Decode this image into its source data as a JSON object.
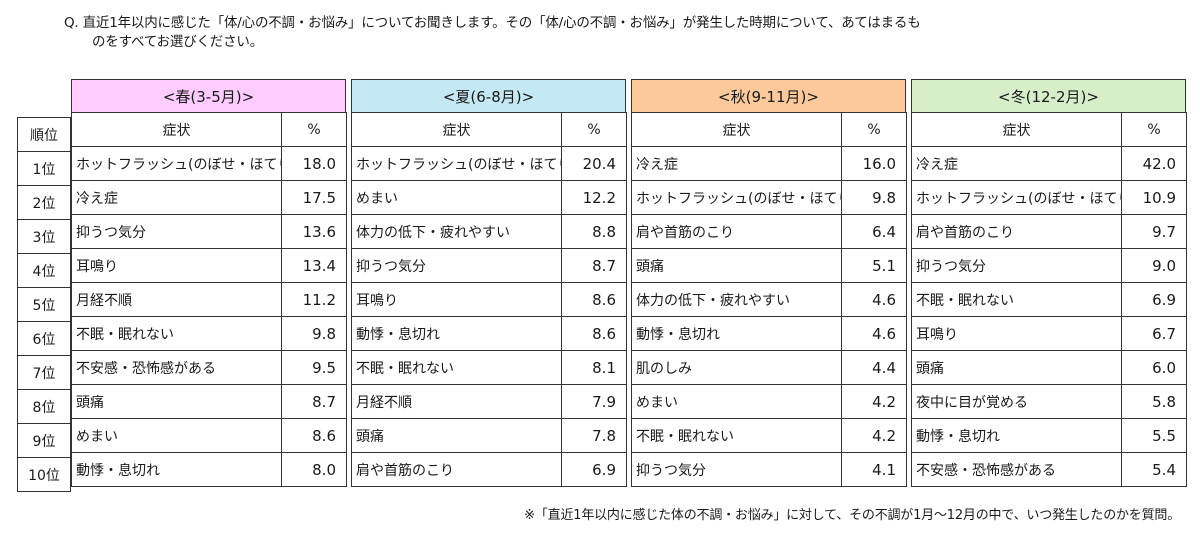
{
  "question": {
    "line1": "Q. 直近1年以内に感じた「体/心の不調・お悩み」についてお聞きします。その「体/心の不調・お悩み」が発生した時期について、あてはまるも",
    "line2": "のをすべてお選びください。"
  },
  "columns": {
    "rank": "順位",
    "symptom": "症状",
    "pct": "%"
  },
  "ranks": [
    "1位",
    "2位",
    "3位",
    "4位",
    "5位",
    "6位",
    "7位",
    "8位",
    "9位",
    "10位"
  ],
  "seasons": [
    {
      "label": "<春(3-5月)>",
      "color": "#ffccff",
      "rows": [
        {
          "symptom": "ホットフラッシュ(のぼせ・ほてり)",
          "pct": "18.0"
        },
        {
          "symptom": "冷え症",
          "pct": "17.5"
        },
        {
          "symptom": "抑うつ気分",
          "pct": "13.6"
        },
        {
          "symptom": "耳鳴り",
          "pct": "13.4"
        },
        {
          "symptom": "月経不順",
          "pct": "11.2"
        },
        {
          "symptom": "不眠・眠れない",
          "pct": "9.8"
        },
        {
          "symptom": "不安感・恐怖感がある",
          "pct": "9.5"
        },
        {
          "symptom": "頭痛",
          "pct": "8.7"
        },
        {
          "symptom": "めまい",
          "pct": "8.6"
        },
        {
          "symptom": "動悸・息切れ",
          "pct": "8.0"
        }
      ]
    },
    {
      "label": "<夏(6-8月)>",
      "color": "#c5e8f5",
      "rows": [
        {
          "symptom": "ホットフラッシュ(のぼせ・ほてり)",
          "pct": "20.4"
        },
        {
          "symptom": "めまい",
          "pct": "12.2"
        },
        {
          "symptom": "体力の低下・疲れやすい",
          "pct": "8.8"
        },
        {
          "symptom": "抑うつ気分",
          "pct": "8.7"
        },
        {
          "symptom": "耳鳴り",
          "pct": "8.6"
        },
        {
          "symptom": "動悸・息切れ",
          "pct": "8.6"
        },
        {
          "symptom": "不眠・眠れない",
          "pct": "8.1"
        },
        {
          "symptom": "月経不順",
          "pct": "7.9"
        },
        {
          "symptom": "頭痛",
          "pct": "7.8"
        },
        {
          "symptom": "肩や首筋のこり",
          "pct": "6.9"
        }
      ]
    },
    {
      "label": "<秋(9-11月)>",
      "color": "#fbc99a",
      "rows": [
        {
          "symptom": "冷え症",
          "pct": "16.0"
        },
        {
          "symptom": "ホットフラッシュ(のぼせ・ほてり)",
          "pct": "9.8"
        },
        {
          "symptom": "肩や首筋のこり",
          "pct": "6.4"
        },
        {
          "symptom": "頭痛",
          "pct": "5.1"
        },
        {
          "symptom": "体力の低下・疲れやすい",
          "pct": "4.6"
        },
        {
          "symptom": "動悸・息切れ",
          "pct": "4.6"
        },
        {
          "symptom": "肌のしみ",
          "pct": "4.4"
        },
        {
          "symptom": "めまい",
          "pct": "4.2"
        },
        {
          "symptom": "不眠・眠れない",
          "pct": "4.2"
        },
        {
          "symptom": "抑うつ気分",
          "pct": "4.1"
        }
      ]
    },
    {
      "label": "<冬(12-2月)>",
      "color": "#d6efc9",
      "rows": [
        {
          "symptom": "冷え症",
          "pct": "42.0"
        },
        {
          "symptom": "ホットフラッシュ(のぼせ・ほてり)",
          "pct": "10.9"
        },
        {
          "symptom": "肩や首筋のこり",
          "pct": "9.7"
        },
        {
          "symptom": "抑うつ気分",
          "pct": "9.0"
        },
        {
          "symptom": "不眠・眠れない",
          "pct": "6.9"
        },
        {
          "symptom": "耳鳴り",
          "pct": "6.7"
        },
        {
          "symptom": "頭痛",
          "pct": "6.0"
        },
        {
          "symptom": "夜中に目が覚める",
          "pct": "5.8"
        },
        {
          "symptom": "動悸・息切れ",
          "pct": "5.5"
        },
        {
          "symptom": "不安感・恐怖感がある",
          "pct": "5.4"
        }
      ]
    }
  ],
  "footnote": "※「直近1年以内に感じた体の不調・お悩み」に対して、その不調が1月～12月の中で、いつ発生したのかを質問。"
}
